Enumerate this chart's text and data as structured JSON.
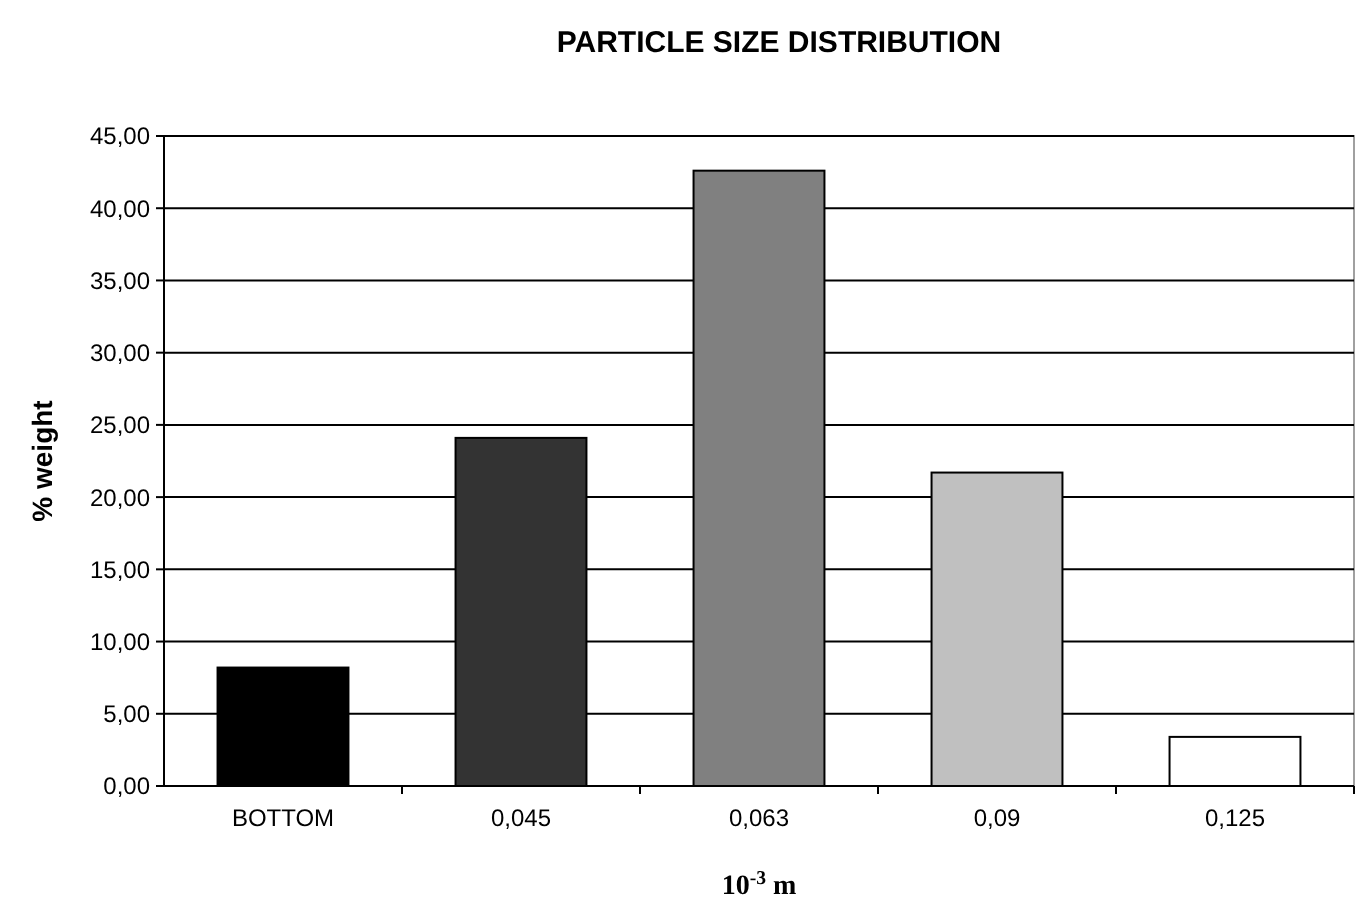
{
  "chart_data": {
    "type": "bar",
    "title": "PARTICLE SIZE DISTRIBUTION",
    "xlabel": "10$^{-3}$ m",
    "ylabel": "% weight",
    "categories": [
      "BOTTOM",
      "0,045",
      "0,063",
      "0,09",
      "0,125"
    ],
    "values": [
      8.2,
      24.1,
      42.6,
      21.7,
      3.4
    ],
    "colors": [
      "#000000",
      "#333333",
      "#808080",
      "#c0c0c0",
      "#ffffff"
    ],
    "ylim": [
      0,
      45
    ],
    "yticks": [
      {
        "value": 0,
        "label": "0,00"
      },
      {
        "value": 5,
        "label": "5,00"
      },
      {
        "value": 10,
        "label": "10,00"
      },
      {
        "value": 15,
        "label": "15,00"
      },
      {
        "value": 20,
        "label": "20,00"
      },
      {
        "value": 25,
        "label": "25,00"
      },
      {
        "value": 30,
        "label": "30,00"
      },
      {
        "value": 35,
        "label": "35,00"
      },
      {
        "value": 40,
        "label": "40,00"
      },
      {
        "value": 45,
        "label": "45,00"
      }
    ],
    "grid": "y"
  }
}
